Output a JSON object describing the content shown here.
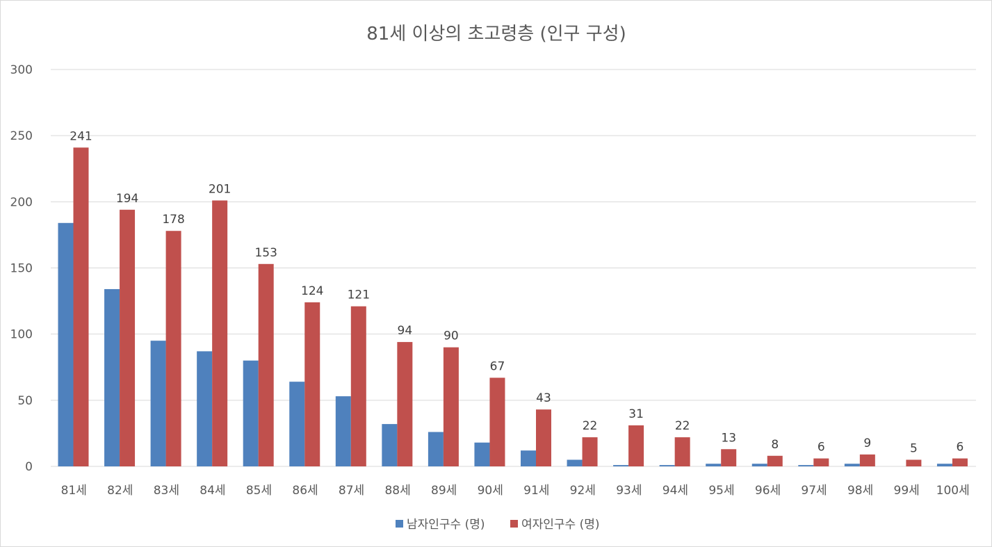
{
  "chart_data": {
    "type": "bar",
    "title": "81세 이상의 초고령층 (인구 구성)",
    "xlabel": "",
    "ylabel": "",
    "ylim": [
      0,
      300
    ],
    "yticks": [
      0,
      50,
      100,
      150,
      200,
      250,
      300
    ],
    "grid": true,
    "legend_position": "bottom",
    "categories": [
      "81세",
      "82세",
      "83세",
      "84세",
      "85세",
      "86세",
      "87세",
      "88세",
      "89세",
      "90세",
      "91세",
      "92세",
      "93세",
      "94세",
      "95세",
      "96세",
      "97세",
      "98세",
      "99세",
      "100세"
    ],
    "series": [
      {
        "name": "남자인구수 (명)",
        "color": "#4f81bd",
        "values": [
          184,
          134,
          95,
          87,
          80,
          64,
          53,
          32,
          26,
          18,
          12,
          5,
          1,
          1,
          2,
          2,
          1,
          2,
          0,
          2
        ],
        "show_labels": false
      },
      {
        "name": "여자인구수 (명)",
        "color": "#c0504d",
        "values": [
          241,
          194,
          178,
          201,
          153,
          124,
          121,
          94,
          90,
          67,
          43,
          22,
          31,
          22,
          13,
          8,
          6,
          9,
          5,
          6
        ],
        "show_labels": true
      }
    ]
  }
}
